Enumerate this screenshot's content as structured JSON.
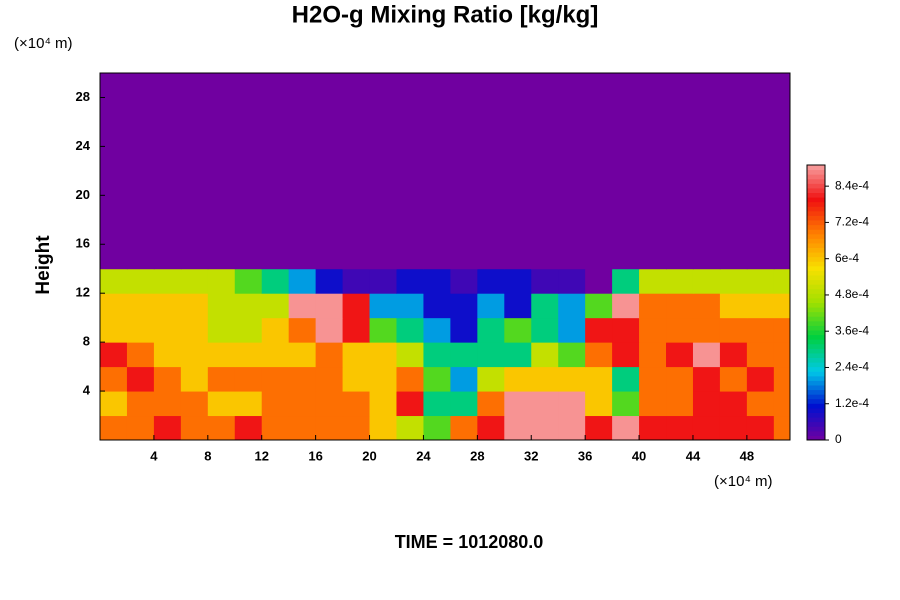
{
  "chart_data": {
    "type": "heatmap",
    "title": "H2O-g Mixing Ratio [kg/kg]",
    "y_unit_label": "(×10⁴ m)",
    "ylabel": "Height",
    "x_unit_label": "(×10⁴ m)",
    "annotation": "TIME = 1012080.0",
    "xlim": [
      0,
      51.2
    ],
    "ylim": [
      0,
      30
    ],
    "xticks": [
      4,
      8,
      12,
      16,
      20,
      24,
      28,
      32,
      36,
      40,
      44,
      48
    ],
    "yticks": [
      4,
      8,
      12,
      16,
      20,
      24,
      28
    ],
    "x_edges": [
      0,
      2,
      4,
      6,
      8,
      10,
      12,
      14,
      16,
      18,
      20,
      22,
      24,
      26,
      28,
      30,
      32,
      34,
      36,
      38,
      40,
      42,
      44,
      46,
      48,
      50,
      51.2
    ],
    "y_edges": [
      0,
      2,
      4,
      6,
      8,
      10,
      12,
      14,
      30
    ],
    "values": [
      [
        0.0007,
        0.0007,
        0.0008,
        0.0007,
        0.0007,
        0.0008,
        0.0007,
        0.0007,
        0.0007,
        0.0007,
        0.0006,
        0.0005,
        0.0004,
        0.0007,
        0.0008,
        0.0009,
        0.0009,
        0.0009,
        0.0008,
        0.0009,
        0.0008,
        0.0008,
        0.0008,
        0.0008,
        0.0008,
        0.0007
      ],
      [
        0.0006,
        0.0007,
        0.0007,
        0.0007,
        0.0006,
        0.0006,
        0.0007,
        0.0007,
        0.0007,
        0.0007,
        0.0006,
        0.0008,
        0.0003,
        0.0003,
        0.0007,
        0.0009,
        0.0009,
        0.0009,
        0.0006,
        0.0004,
        0.0007,
        0.0007,
        0.0008,
        0.0008,
        0.0007,
        0.0007
      ],
      [
        0.0007,
        0.0008,
        0.0007,
        0.0006,
        0.0007,
        0.0007,
        0.0007,
        0.0007,
        0.0007,
        0.0006,
        0.0006,
        0.0007,
        0.0004,
        0.0002,
        0.0005,
        0.0006,
        0.0006,
        0.0006,
        0.0006,
        0.0003,
        0.0007,
        0.0007,
        0.0008,
        0.0007,
        0.0008,
        0.0007
      ],
      [
        0.0008,
        0.0007,
        0.0006,
        0.0006,
        0.0006,
        0.0006,
        0.0006,
        0.0006,
        0.0007,
        0.0006,
        0.0006,
        0.0005,
        0.0003,
        0.0003,
        0.0003,
        0.0003,
        0.0005,
        0.0004,
        0.0007,
        0.0008,
        0.0007,
        0.0008,
        0.0009,
        0.0008,
        0.0007,
        0.0007
      ],
      [
        0.0006,
        0.0006,
        0.0006,
        0.0006,
        0.0005,
        0.0005,
        0.0006,
        0.0007,
        0.0009,
        0.0008,
        0.0004,
        0.0003,
        0.0002,
        0.0001,
        0.0003,
        0.0004,
        0.0003,
        0.0002,
        0.0008,
        0.0008,
        0.0007,
        0.0007,
        0.0007,
        0.0007,
        0.0007,
        0.0007
      ],
      [
        0.0006,
        0.0006,
        0.0006,
        0.0006,
        0.0005,
        0.0005,
        0.0005,
        0.0009,
        0.0009,
        0.0008,
        0.0002,
        0.0002,
        0.0001,
        0.0001,
        0.0002,
        0.0001,
        0.0003,
        0.0002,
        0.0004,
        0.0009,
        0.0007,
        0.0007,
        0.0007,
        0.0006,
        0.0006,
        0.0006
      ],
      [
        0.0005,
        0.0005,
        0.0005,
        0.0005,
        0.0005,
        0.0004,
        0.0003,
        0.0002,
        0.0001,
        5e-05,
        5e-05,
        0.0001,
        0.0001,
        5e-05,
        0.0001,
        0.0001,
        5e-05,
        5e-05,
        0,
        0.0003,
        0.0005,
        0.0005,
        0.0005,
        0.0005,
        0.0005,
        0.0005
      ],
      [
        0,
        0,
        0,
        0,
        0,
        0,
        0,
        0,
        0,
        0,
        0,
        0,
        0,
        0,
        0,
        0,
        0,
        0,
        0,
        0,
        0,
        0,
        0,
        0,
        0,
        0
      ]
    ],
    "clim": [
      0,
      0.00091
    ],
    "colorbar_ticks": [
      0,
      {
        "value": 0.00012,
        "label": "1.2e-4"
      },
      {
        "value": 0.00024,
        "label": "2.4e-4"
      },
      {
        "value": 0.00036,
        "label": "3.6e-4"
      },
      {
        "value": 0.00048,
        "label": "4.8e-4"
      },
      {
        "value": 0.0006,
        "label": "6e-4"
      },
      {
        "value": 0.00072,
        "label": "7.2e-4"
      },
      {
        "value": 0.00084,
        "label": "8.4e-4"
      }
    ],
    "colormap": [
      "#7000a0",
      "#0010d0",
      "#00c8e8",
      "#00d040",
      "#a0e000",
      "#f8e000",
      "#ff8000",
      "#f01010",
      "#f8a0a0"
    ]
  }
}
